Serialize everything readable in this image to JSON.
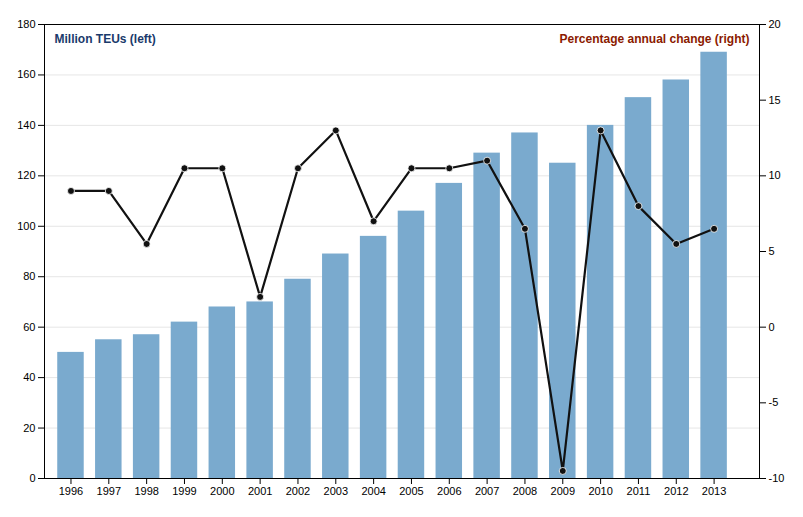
{
  "chart_data": {
    "type": "bar",
    "x": [
      1996,
      1997,
      1998,
      1999,
      2000,
      2001,
      2002,
      2003,
      2004,
      2005,
      2006,
      2007,
      2008,
      2009,
      2010,
      2011,
      2012,
      2013
    ],
    "xlim": [
      1995.3,
      2014.2
    ],
    "xticks": [
      1996,
      1997,
      1998,
      1999,
      2000,
      2001,
      2002,
      2003,
      2004,
      2005,
      2006,
      2007,
      2008,
      2009,
      2010,
      2011,
      2012,
      2013
    ],
    "ylim": [
      0,
      180
    ],
    "yticks": [
      0,
      20,
      40,
      60,
      80,
      100,
      120,
      140,
      160,
      180
    ],
    "y2lim": [
      -10,
      20
    ],
    "y2ticks": [
      -10,
      -5,
      0,
      5,
      10,
      15,
      20
    ],
    "grid": true,
    "series": [
      {
        "type": "bar",
        "color": "#7aaace",
        "values": [
          50,
          55,
          57,
          62,
          68,
          70,
          79,
          89,
          96,
          106,
          117,
          129,
          137,
          125,
          140,
          151,
          158,
          169
        ]
      },
      {
        "type": "line",
        "axis": "y2",
        "color": "#111111",
        "marker": "o",
        "values": [
          9.0,
          9.0,
          5.5,
          10.5,
          10.5,
          2.0,
          10.5,
          13.0,
          7.0,
          10.5,
          10.5,
          11.0,
          6.5,
          -9.5,
          13.0,
          8.0,
          5.5,
          6.5
        ]
      }
    ],
    "annotations": [
      {
        "text": "Million TEUs (left)",
        "color": "#1a3a6b"
      },
      {
        "text": "Percentage annual change (right)",
        "color": "#8b1a00"
      }
    ]
  }
}
